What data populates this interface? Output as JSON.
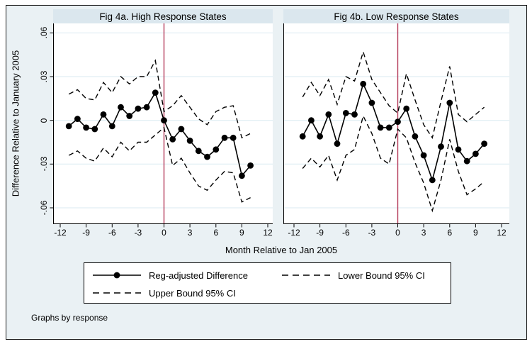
{
  "figure": {
    "y_axis_title": "Difference Relative to January 2005",
    "x_axis_title": "Month Relative to Jan 2005",
    "footnote": "Graphs by response",
    "colors": {
      "frame_bg": "#eaf1f4",
      "strip_bg": "#dbe7ee",
      "plot_bg": "#ffffff",
      "grid": "#d9eaf1",
      "series": "#000000",
      "ref_line": "#b43a5a",
      "legend_bg": "#ffffff"
    }
  },
  "legend": {
    "items": [
      {
        "label": "Reg-adjusted Difference",
        "style": "solid-dot"
      },
      {
        "label": "Lower Bound 95% CI",
        "style": "dashed"
      },
      {
        "label": "Upper Bound 95% CI",
        "style": "dashed"
      }
    ]
  },
  "chart_data": [
    {
      "type": "line",
      "title": "Fig 4a. High Response States",
      "xlabel": "Month Relative to Jan 2005",
      "ylabel": "Difference Relative to January 2005",
      "xlim": [
        -12,
        12
      ],
      "ylim": [
        -0.0712,
        0.0665
      ],
      "x_ticks": [
        -12,
        -9,
        -6,
        -3,
        0,
        3,
        6,
        9,
        12
      ],
      "y_ticks": [
        {
          "label": ".06",
          "value": 0.06
        },
        {
          "label": ".03",
          "value": 0.03
        },
        {
          "label": "0",
          "value": 0
        },
        {
          "label": "-.03",
          "value": -0.03
        },
        {
          "label": "-.06",
          "value": -0.06
        }
      ],
      "ref_line_x": 0,
      "grid": true,
      "x": [
        -11,
        -10,
        -9,
        -8,
        -7,
        -6,
        -5,
        -4,
        -3,
        -2,
        -1,
        0,
        1,
        2,
        3,
        4,
        5,
        6,
        7,
        8,
        9,
        10
      ],
      "series": [
        {
          "name": "Reg-adjusted Difference",
          "style": "solid-dot",
          "values": [
            -0.004,
            0.001,
            -0.005,
            -0.006,
            0.004,
            -0.004,
            0.009,
            0.003,
            0.008,
            0.009,
            0.019,
            0.0,
            -0.013,
            -0.006,
            -0.014,
            -0.021,
            -0.025,
            -0.02,
            -0.012,
            -0.012,
            -0.038,
            -0.031
          ]
        },
        {
          "name": "Upper Bound 95% CI",
          "style": "dashed",
          "values": [
            0.018,
            0.021,
            0.015,
            0.014,
            0.026,
            0.019,
            0.03,
            0.025,
            0.03,
            0.03,
            0.041,
            0.006,
            0.01,
            0.017,
            0.009,
            0.001,
            -0.003,
            0.006,
            0.009,
            0.01,
            -0.012,
            -0.009
          ]
        },
        {
          "name": "Lower Bound 95% CI",
          "style": "dashed",
          "values": [
            -0.024,
            -0.021,
            -0.026,
            -0.028,
            -0.019,
            -0.025,
            -0.015,
            -0.021,
            -0.015,
            -0.015,
            -0.01,
            -0.005,
            -0.031,
            -0.026,
            -0.036,
            -0.045,
            -0.048,
            -0.041,
            -0.035,
            -0.036,
            -0.056,
            -0.053
          ]
        }
      ]
    },
    {
      "type": "line",
      "title": "Fig 4b. Low Response States",
      "xlabel": "Month Relative to Jan 2005",
      "ylabel": "Difference Relative to January 2005",
      "xlim": [
        -12,
        12
      ],
      "ylim": [
        -0.0712,
        0.0665
      ],
      "x_ticks": [
        -12,
        -9,
        -6,
        -3,
        0,
        3,
        6,
        9,
        12
      ],
      "y_ticks": [
        {
          "label": ".06",
          "value": 0.06
        },
        {
          "label": ".03",
          "value": 0.03
        },
        {
          "label": "0",
          "value": 0
        },
        {
          "label": "-.03",
          "value": -0.03
        },
        {
          "label": "-.06",
          "value": -0.06
        }
      ],
      "ref_line_x": 0,
      "grid": true,
      "x": [
        -11,
        -10,
        -9,
        -8,
        -7,
        -6,
        -5,
        -4,
        -3,
        -2,
        -1,
        0,
        1,
        2,
        3,
        4,
        5,
        6,
        7,
        8,
        9,
        10
      ],
      "series": [
        {
          "name": "Reg-adjusted Difference",
          "style": "solid-dot",
          "values": [
            -0.011,
            0.0,
            -0.011,
            0.004,
            -0.016,
            0.005,
            0.004,
            0.025,
            0.012,
            -0.005,
            -0.005,
            -0.001,
            0.008,
            -0.011,
            -0.024,
            -0.041,
            -0.018,
            0.012,
            -0.02,
            -0.028,
            -0.023,
            -0.016
          ]
        },
        {
          "name": "Upper Bound 95% CI",
          "style": "dashed",
          "values": [
            0.016,
            0.026,
            0.017,
            0.028,
            0.011,
            0.03,
            0.027,
            0.047,
            0.028,
            0.019,
            0.01,
            0.005,
            0.032,
            0.014,
            -0.003,
            -0.012,
            0.013,
            0.037,
            0.004,
            -0.001,
            0.004,
            0.009
          ]
        },
        {
          "name": "Lower Bound 95% CI",
          "style": "dashed",
          "values": [
            -0.033,
            -0.026,
            -0.032,
            -0.024,
            -0.041,
            -0.024,
            -0.02,
            0.003,
            -0.009,
            -0.026,
            -0.03,
            -0.006,
            -0.012,
            -0.029,
            -0.043,
            -0.062,
            -0.041,
            -0.013,
            -0.035,
            -0.051,
            -0.047,
            -0.042
          ]
        }
      ]
    }
  ]
}
